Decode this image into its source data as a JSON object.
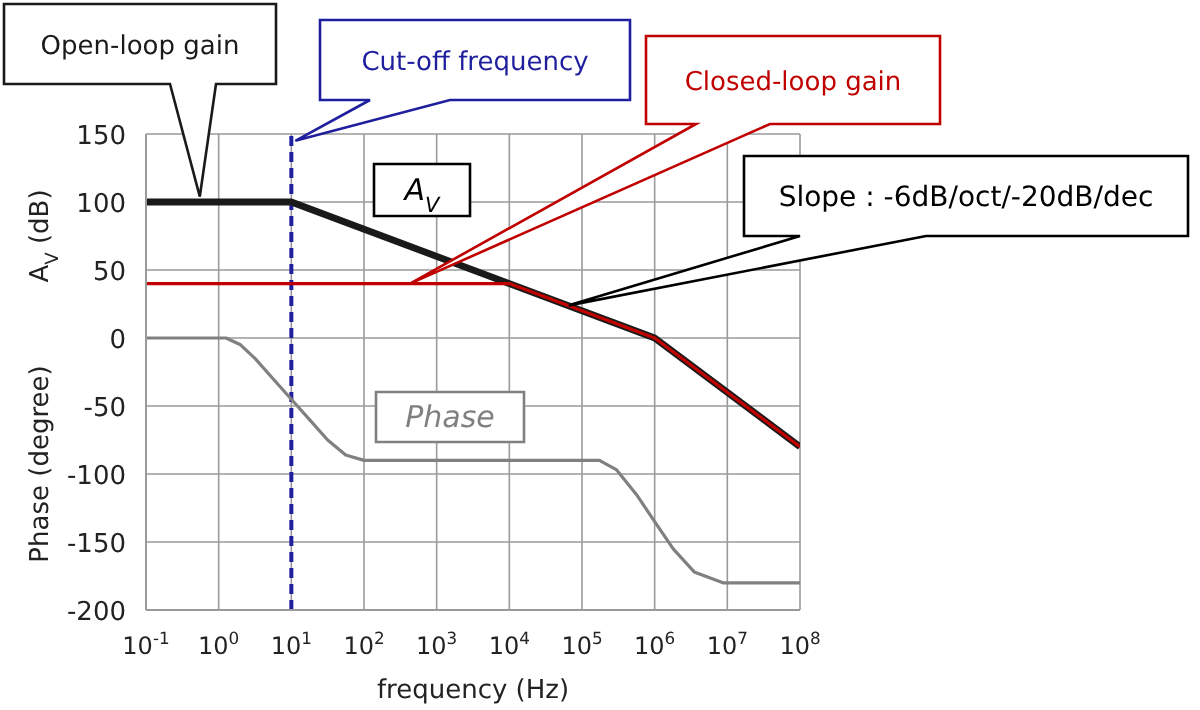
{
  "chart_data": {
    "type": "line",
    "xlabel": "frequency (Hz)",
    "ylabel": "A$_{V}$ (dB)",
    "log": "x",
    "grid": true,
    "legend": false,
    "xlim": [
      0.1,
      100000000
    ],
    "ylim": [
      -200,
      150
    ],
    "xticks": [
      {
        "value": 0.1,
        "label": "10$^{-1}$"
      },
      {
        "value": 1,
        "label": "10$^{0}$"
      },
      {
        "value": 10,
        "label": "10$^{1}$"
      },
      {
        "value": 100,
        "label": "10$^{2}$"
      },
      {
        "value": 1000,
        "label": "10$^{3}$"
      },
      {
        "value": 10000,
        "label": "10$^{4}$"
      },
      {
        "value": 100000,
        "label": "10$^{5}$"
      },
      {
        "value": 1000000,
        "label": "10$^{6}$"
      },
      {
        "value": 10000000,
        "label": "10$^{7}$"
      },
      {
        "value": 100000000,
        "label": "10$^{8}$"
      }
    ],
    "yticks": [
      -200,
      -150,
      -100,
      -50,
      0,
      50,
      100,
      150
    ],
    "series": [
      {
        "name": "Open-loop gain",
        "color": "#1a1a1a",
        "x": [
          0.1,
          10,
          1000000,
          100000000
        ],
        "values": [
          100,
          100,
          0,
          -80
        ]
      },
      {
        "name": "Closed-loop gain",
        "color": "#c00000",
        "x": [
          0.1,
          10000,
          1000000,
          100000000
        ],
        "values": [
          40,
          40,
          0,
          -80
        ]
      },
      {
        "name": "Phase",
        "color": "#808080",
        "x": [
          0.1,
          1.26,
          2,
          3.16,
          5.6,
          10,
          17.8,
          31.6,
          56,
          100,
          174000,
          300000,
          560000,
          1000000,
          1800000,
          3500000,
          8700000,
          100000000
        ],
        "values": [
          0,
          0,
          -5,
          -15,
          -30,
          -45,
          -60,
          -75,
          -86,
          -90,
          -90,
          -97,
          -115,
          -135,
          -155,
          -172,
          -180,
          -180
        ]
      }
    ],
    "ref_lines": [
      {
        "axis": "x",
        "value": 10,
        "label": "Cut-off frequency",
        "color": "#1f1f9e",
        "line_style": "dashed"
      }
    ],
    "annotations": [
      "A$_{V}$",
      "Phase (degree)",
      "Slope : -6dB/oct/-20dB/dec"
    ]
  }
}
